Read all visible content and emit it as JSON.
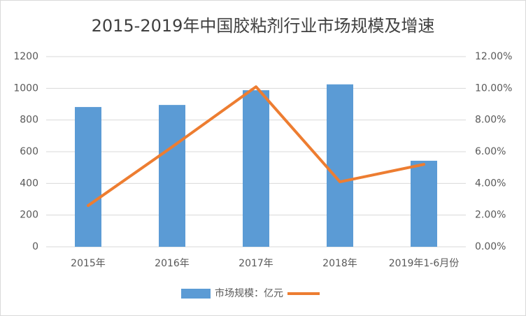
{
  "chart_data": {
    "type": "bar-line",
    "title": "2015-2019年中国胶粘剂行业市场规模及增速",
    "categories": [
      "2015年",
      "2016年",
      "2017年",
      "2018年",
      "2019年1-6月份"
    ],
    "series": [
      {
        "name": "市场规模：亿元",
        "color": "#5b9bd5",
        "type": "bar",
        "values": [
          882,
          895,
          988,
          1025,
          543
        ]
      },
      {
        "color": "#ed7d31",
        "type": "line",
        "axis": "y2",
        "values": [
          2.6,
          6.3,
          10.1,
          4.1,
          5.2
        ]
      }
    ],
    "ylim": [
      0,
      1200
    ],
    "yticks": [
      0,
      200,
      400,
      600,
      800,
      1000,
      1200
    ],
    "y2lim": [
      0,
      12
    ],
    "y2ticks": [
      {
        "value": 0,
        "label": "0.00%"
      },
      {
        "value": 2,
        "label": "2.00%"
      },
      {
        "value": 4,
        "label": "4.00%"
      },
      {
        "value": 6,
        "label": "6.00%"
      },
      {
        "value": 8,
        "label": "8.00%"
      },
      {
        "value": 10,
        "label": "10.00%"
      },
      {
        "value": 12,
        "label": "12.00%"
      }
    ],
    "grid": true,
    "legend": "bottom"
  }
}
